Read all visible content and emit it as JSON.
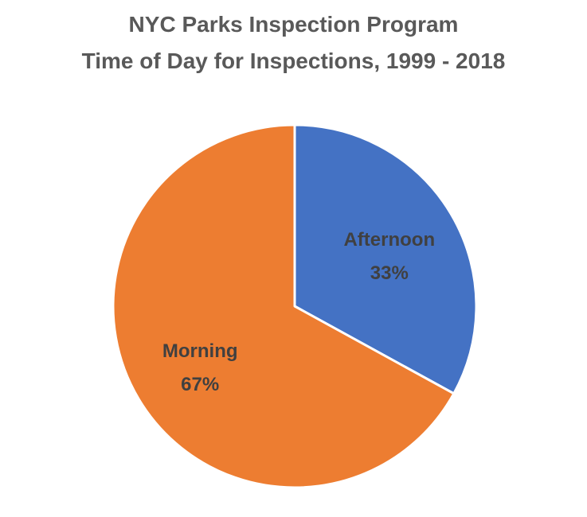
{
  "chart_data": {
    "type": "pie",
    "title": "NYC Parks Inspection Program",
    "subtitle": "Time of Day for Inspections, 1999 - 2018",
    "slices": [
      {
        "label": "Afternoon",
        "value": 33,
        "display": "33%",
        "color": "#4472C4"
      },
      {
        "label": "Morning",
        "value": 67,
        "display": "67%",
        "color": "#ED7D31"
      }
    ],
    "start_angle_deg": 0,
    "direction": "clockwise",
    "legend": "none"
  }
}
